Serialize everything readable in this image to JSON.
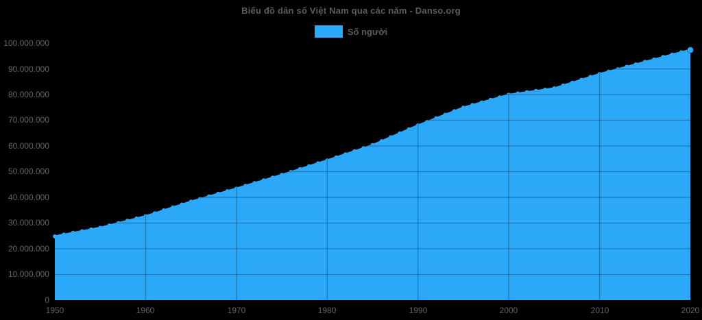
{
  "page": {
    "background": "#000000"
  },
  "header": {
    "title": "Biểu đồ dân số Việt Nam qua các năm - Danso.org"
  },
  "legend": {
    "label": "Số người"
  },
  "colors": {
    "background": "#000000",
    "area": "#2CA8F8",
    "grid_overlay": "rgba(0,0,0,0.28)",
    "title_text": "#5c5c5c",
    "tick_text": "#646464"
  },
  "chart_data": {
    "type": "area",
    "title": "Biểu đồ dân số Việt Nam qua các năm - Danso.org",
    "xlabel": "",
    "ylabel": "",
    "legend_position": "top",
    "legend_entries": [
      "Số người"
    ],
    "grid": true,
    "marker": "circle",
    "xlim": [
      1950,
      2020
    ],
    "ylim": [
      0,
      100000000
    ],
    "x_axis": {
      "ticks": [
        {
          "value": 1950,
          "label": "1950"
        },
        {
          "value": 1960,
          "label": "1960"
        },
        {
          "value": 1970,
          "label": "1970"
        },
        {
          "value": 1980,
          "label": "1980"
        },
        {
          "value": 1990,
          "label": "1990"
        },
        {
          "value": 2000,
          "label": "2000"
        },
        {
          "value": 2010,
          "label": "2010"
        },
        {
          "value": 2020,
          "label": "2020"
        }
      ]
    },
    "y_axis": {
      "ticks": [
        {
          "value": 0,
          "label": "0"
        },
        {
          "value": 10000000,
          "label": "10.000.000"
        },
        {
          "value": 20000000,
          "label": "20.000.000"
        },
        {
          "value": 30000000,
          "label": "30.000.000"
        },
        {
          "value": 40000000,
          "label": "40.000.000"
        },
        {
          "value": 50000000,
          "label": "50.000.000"
        },
        {
          "value": 60000000,
          "label": "60.000.000"
        },
        {
          "value": 70000000,
          "label": "70.000.000"
        },
        {
          "value": 80000000,
          "label": "80.000.000"
        },
        {
          "value": 90000000,
          "label": "90.000.000"
        },
        {
          "value": 100000000,
          "label": "100.000.000"
        }
      ]
    },
    "series": [
      {
        "name": "Số người",
        "x": [
          1950,
          1951,
          1952,
          1953,
          1954,
          1955,
          1956,
          1957,
          1958,
          1959,
          1960,
          1961,
          1962,
          1963,
          1964,
          1965,
          1966,
          1967,
          1968,
          1969,
          1970,
          1971,
          1972,
          1973,
          1974,
          1975,
          1976,
          1977,
          1978,
          1979,
          1980,
          1981,
          1982,
          1983,
          1984,
          1985,
          1986,
          1987,
          1988,
          1989,
          1990,
          1991,
          1992,
          1993,
          1994,
          1995,
          1996,
          1997,
          1998,
          1999,
          2000,
          2001,
          2002,
          2003,
          2004,
          2005,
          2006,
          2007,
          2008,
          2009,
          2010,
          2011,
          2012,
          2013,
          2014,
          2015,
          2016,
          2017,
          2018,
          2019,
          2020
        ],
        "values": [
          24810000,
          25480000,
          26150000,
          26810000,
          27480000,
          28150000,
          29050000,
          29960000,
          30860000,
          31770000,
          32670000,
          33800000,
          34940000,
          36070000,
          37210000,
          38340000,
          39350000,
          40370000,
          41380000,
          42390000,
          43410000,
          44470000,
          45540000,
          46600000,
          47670000,
          48730000,
          49860000,
          50990000,
          52120000,
          53240000,
          54370000,
          55560000,
          56740000,
          57930000,
          59120000,
          60310000,
          61850000,
          63380000,
          64920000,
          66450000,
          67990000,
          69370000,
          70760000,
          72140000,
          73530000,
          74910000,
          75910000,
          76910000,
          77910000,
          78910000,
          79910000,
          80410000,
          80900000,
          81400000,
          81890000,
          82390000,
          83510000,
          84620000,
          85740000,
          86850000,
          87970000,
          88910000,
          89850000,
          90790000,
          91730000,
          92680000,
          93640000,
          94600000,
          95550000,
          96460000,
          97340000
        ]
      }
    ]
  }
}
